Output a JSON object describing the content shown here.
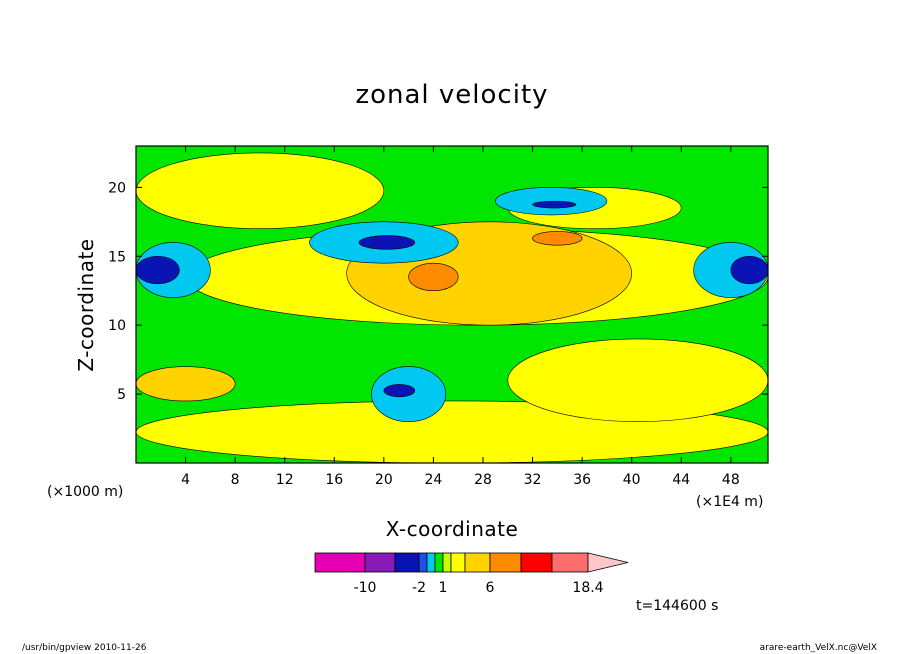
{
  "chart_data": {
    "type": "heatmap",
    "title": "zonal velocity",
    "xlabel": "X-coordinate",
    "ylabel": "Z-coordinate",
    "x_unit": "(×1E4 m)",
    "y_unit": "(×1000 m)",
    "xlim": [
      0,
      51
    ],
    "ylim": [
      0,
      23
    ],
    "x_ticks": [
      4,
      8,
      12,
      16,
      20,
      24,
      28,
      32,
      36,
      40,
      44,
      48
    ],
    "y_ticks": [
      5,
      10,
      15,
      20
    ],
    "time_label": "t=144600 s",
    "colorbar": {
      "levels": [
        -14,
        -10,
        -6,
        -2,
        -1,
        0,
        1,
        2,
        3,
        6,
        10,
        14,
        18.4
      ],
      "tick_labels": [
        "-10",
        "-2",
        "1",
        "6",
        "18.4"
      ],
      "tick_values": [
        -10,
        -2,
        1,
        6,
        18.4
      ],
      "colors": [
        "#e600b4",
        "#8a1ab8",
        "#0a14b4",
        "#1e50e6",
        "#00c8f0",
        "#00e600",
        "#c8ff00",
        "#ffff00",
        "#ffd200",
        "#ff8c00",
        "#ff0000",
        "#ff6e6e",
        "#ffb4b4",
        "#ffc8c8"
      ]
    },
    "regions": [
      {
        "x": [
          0,
          51
        ],
        "z": [
          0,
          23
        ],
        "value": 0.5,
        "color": "#00e600"
      },
      {
        "x": [
          0,
          51
        ],
        "z": [
          0,
          4.5
        ],
        "value": 1.5,
        "color": "#ffff00"
      },
      {
        "x": [
          30,
          51
        ],
        "z": [
          3,
          9
        ],
        "value": 1.5,
        "color": "#ffff00"
      },
      {
        "x": [
          4,
          51
        ],
        "z": [
          10,
          17
        ],
        "value": 1.5,
        "color": "#ffff00"
      },
      {
        "x": [
          0,
          20
        ],
        "z": [
          17,
          22.5
        ],
        "value": 1.5,
        "color": "#ffff00"
      },
      {
        "x": [
          30,
          44
        ],
        "z": [
          17,
          20
        ],
        "value": 1.5,
        "color": "#ffff00"
      },
      {
        "x": [
          0,
          8
        ],
        "z": [
          4.5,
          7
        ],
        "value": 4,
        "color": "#ffd200"
      },
      {
        "x": [
          17,
          40
        ],
        "z": [
          10,
          17.5
        ],
        "value": 4,
        "color": "#ffd200"
      },
      {
        "x": [
          19,
          25
        ],
        "z": [
          3,
          7
        ],
        "value": -1.5,
        "color": "#00c8f0"
      },
      {
        "x": [
          14,
          26
        ],
        "z": [
          14.5,
          17.5
        ],
        "value": -1.5,
        "color": "#00c8f0"
      },
      {
        "x": [
          0,
          6
        ],
        "z": [
          12,
          16
        ],
        "value": -1.5,
        "color": "#00c8f0"
      },
      {
        "x": [
          45,
          51
        ],
        "z": [
          12,
          16
        ],
        "value": -1.5,
        "color": "#00c8f0"
      },
      {
        "x": [
          29,
          38
        ],
        "z": [
          18,
          20
        ],
        "value": -1.5,
        "color": "#00c8f0"
      },
      {
        "x": [
          20,
          22.5
        ],
        "z": [
          4.8,
          5.7
        ],
        "value": -4,
        "color": "#0a14b4"
      },
      {
        "x": [
          18,
          22.5
        ],
        "z": [
          15.5,
          16.5
        ],
        "value": -4,
        "color": "#0a14b4"
      },
      {
        "x": [
          0,
          3.5
        ],
        "z": [
          13,
          15
        ],
        "value": -4,
        "color": "#0a14b4"
      },
      {
        "x": [
          48,
          51
        ],
        "z": [
          13,
          15
        ],
        "value": -4,
        "color": "#0a14b4"
      },
      {
        "x": [
          32,
          35.5
        ],
        "z": [
          18.5,
          19
        ],
        "value": -4,
        "color": "#0a14b4"
      },
      {
        "x": [
          22,
          26
        ],
        "z": [
          12.5,
          14.5
        ],
        "value": 8,
        "color": "#ff8c00"
      },
      {
        "x": [
          32,
          36
        ],
        "z": [
          15.8,
          16.8
        ],
        "value": 8,
        "color": "#ff8c00"
      }
    ]
  },
  "footer": {
    "left": "/usr/bin/gpview   2010-11-26",
    "right": "arare-earth_VelX.nc@VelX"
  }
}
